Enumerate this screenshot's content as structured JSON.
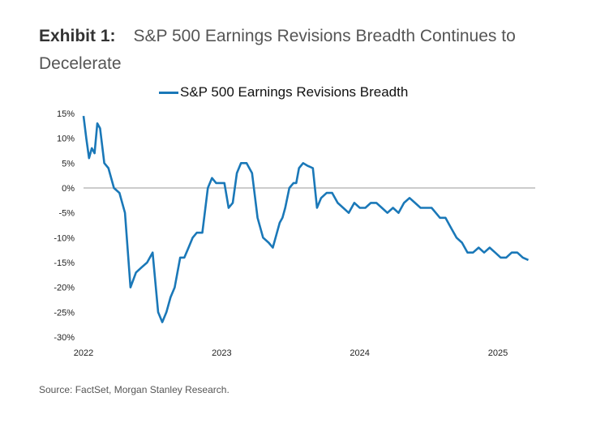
{
  "exhibit": {
    "label": "Exhibit 1:",
    "title": "S&P 500 Earnings Revisions Breadth Continues to Decelerate"
  },
  "source": "Source: FactSet, Morgan Stanley Research.",
  "colors": {
    "line": "#1a78b8",
    "zero_line": "#999999"
  },
  "chart_data": {
    "type": "line",
    "title": "",
    "xlabel": "",
    "ylabel": "",
    "legend": "top-center",
    "series": [
      {
        "name": "S&P 500 Earnings Revisions Breadth",
        "x": [
          2022.0,
          2022.02,
          2022.04,
          2022.06,
          2022.08,
          2022.1,
          2022.12,
          2022.15,
          2022.18,
          2022.22,
          2022.26,
          2022.3,
          2022.34,
          2022.38,
          2022.42,
          2022.46,
          2022.5,
          2022.54,
          2022.57,
          2022.6,
          2022.63,
          2022.66,
          2022.7,
          2022.73,
          2022.76,
          2022.79,
          2022.82,
          2022.86,
          2022.9,
          2022.93,
          2022.96,
          2022.99,
          2023.02,
          2023.05,
          2023.08,
          2023.11,
          2023.14,
          2023.18,
          2023.22,
          2023.26,
          2023.3,
          2023.34,
          2023.37,
          2023.4,
          2023.42,
          2023.44,
          2023.46,
          2023.49,
          2023.52,
          2023.54,
          2023.56,
          2023.59,
          2023.62,
          2023.66,
          2023.69,
          2023.72,
          2023.76,
          2023.8,
          2023.84,
          2023.88,
          2023.92,
          2023.96,
          2024.0,
          2024.04,
          2024.08,
          2024.12,
          2024.16,
          2024.2,
          2024.24,
          2024.28,
          2024.32,
          2024.36,
          2024.4,
          2024.44,
          2024.48,
          2024.52,
          2024.55,
          2024.58,
          2024.62,
          2024.66,
          2024.7,
          2024.74,
          2024.78,
          2024.82,
          2024.86,
          2024.9,
          2024.94,
          2024.98,
          2025.02,
          2025.06,
          2025.1,
          2025.14,
          2025.18,
          2025.22
        ],
        "values": [
          14.5,
          10,
          6,
          8,
          7,
          13,
          12,
          5,
          4,
          0,
          -1,
          -5,
          -20,
          -17,
          -16,
          -15,
          -13,
          -25,
          -27,
          -25,
          -22,
          -20,
          -14,
          -14,
          -12,
          -10,
          -9,
          -9,
          0,
          2,
          1,
          1,
          1,
          -4,
          -3,
          3,
          5,
          5,
          3,
          -6,
          -10,
          -11,
          -12,
          -9,
          -7,
          -6,
          -4,
          0,
          1,
          1,
          4,
          5,
          4.5,
          4,
          -4,
          -2,
          -1,
          -1,
          -3,
          -4,
          -5,
          -3,
          -4,
          -4,
          -3,
          -3,
          -4,
          -5,
          -4,
          -5,
          -3,
          -2,
          -3,
          -4,
          -4,
          -4,
          -5,
          -6,
          -6,
          -8,
          -10,
          -11,
          -13,
          -13,
          -12,
          -13,
          -12,
          -13,
          -14,
          -14,
          -13,
          -13,
          -14,
          -14.5
        ]
      }
    ],
    "ylim": [
      -30,
      15
    ],
    "yticks": [
      15,
      10,
      5,
      0,
      -5,
      -10,
      -15,
      -20,
      -25,
      -30
    ],
    "ytick_labels": [
      "15%",
      "10%",
      "5%",
      "0%",
      "-5%",
      "-10%",
      "-15%",
      "-20%",
      "-25%",
      "-30%"
    ],
    "xlim": [
      2022.0,
      2025.27
    ],
    "xticks": [
      2022,
      2023,
      2024,
      2025
    ],
    "xtick_labels": [
      "2022",
      "2023",
      "2024",
      "2025"
    ]
  }
}
